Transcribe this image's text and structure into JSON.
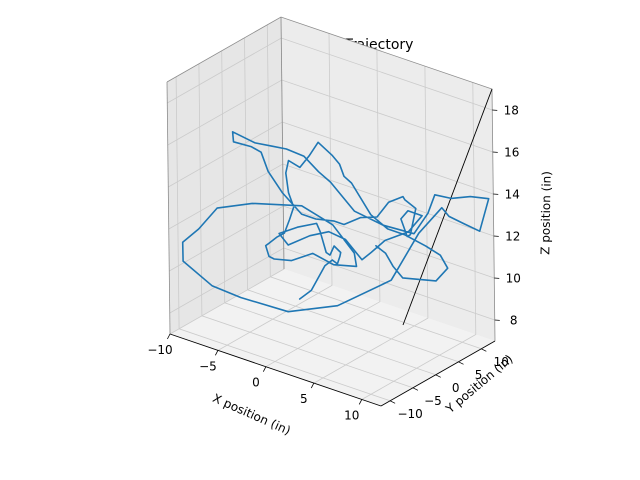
{
  "chart_data": {
    "type": "line",
    "projection": "3d",
    "title": "3D plot of Ball Trajectory",
    "xlabel": "X position (in)",
    "ylabel": "Y position (in)",
    "zlabel": "Z  position (in)",
    "xlim": [
      -10,
      12
    ],
    "ylim": [
      -12,
      13
    ],
    "zlim": [
      7,
      19
    ],
    "xticks": [
      -10,
      -5,
      0,
      5,
      10
    ],
    "yticks": [
      -10,
      -5,
      0,
      5,
      10
    ],
    "zticks": [
      8,
      10,
      12,
      14,
      16,
      18
    ],
    "xtick_labels": [
      "−10",
      "−5",
      "0",
      "5",
      "10"
    ],
    "ytick_labels": [
      "−10",
      "−5",
      "0",
      "5",
      "10"
    ],
    "ztick_labels": [
      "8",
      "10",
      "12",
      "14",
      "16",
      "18"
    ],
    "grid": true,
    "series": [
      {
        "color": "#1f77b4",
        "points": [
          [
            0.5,
            -5.5,
            9.5
          ],
          [
            1.0,
            -4.0,
            9.8
          ],
          [
            1.5,
            -2.0,
            10.8
          ],
          [
            1.8,
            -1.0,
            11.0
          ],
          [
            1.6,
            0.5,
            10.6
          ],
          [
            1.4,
            1.5,
            10.8
          ],
          [
            1.0,
            2.5,
            10.8
          ],
          [
            0.8,
            1.5,
            11.2
          ],
          [
            0.6,
            1.0,
            10.8
          ],
          [
            0.3,
            0.8,
            10.9
          ],
          [
            -0.3,
            0.8,
            11.8
          ],
          [
            -1.0,
            1.5,
            12.0
          ],
          [
            -2.3,
            0.0,
            11.8
          ],
          [
            -3.5,
            -1.5,
            11.5
          ],
          [
            -2.8,
            -1.0,
            11.0
          ],
          [
            -1.0,
            0.0,
            11.6
          ],
          [
            0.5,
            1.0,
            11.9
          ],
          [
            2.0,
            1.5,
            11.7
          ],
          [
            2.5,
            4.0,
            10.5
          ],
          [
            2.5,
            6.0,
            10.6
          ],
          [
            3.0,
            8.0,
            11.0
          ],
          [
            4.5,
            10.0,
            11.4
          ],
          [
            5.0,
            12.0,
            12.0
          ],
          [
            4.0,
            11.0,
            12.2
          ],
          [
            3.5,
            10.5,
            11.8
          ],
          [
            4.0,
            10.8,
            11.0
          ],
          [
            4.0,
            11.5,
            11.0
          ],
          [
            4.5,
            11.7,
            12.3
          ],
          [
            3.5,
            11.4,
            12.6
          ],
          [
            3.5,
            11.0,
            12.8
          ],
          [
            2.0,
            11.0,
            12.3
          ],
          [
            1.0,
            10.5,
            11.5
          ],
          [
            -0.5,
            10.0,
            11.3
          ],
          [
            -1.5,
            8.5,
            11.0
          ],
          [
            -1.8,
            7.0,
            11.3
          ],
          [
            -3.0,
            5.5,
            11.4
          ],
          [
            -4.0,
            4.5,
            11.6
          ],
          [
            -5.5,
            3.5,
            12.5
          ],
          [
            -6.5,
            2.5,
            13.5
          ],
          [
            -7.2,
            2.5,
            14.3
          ],
          [
            -8.0,
            2.0,
            14.5
          ],
          [
            -8.5,
            -0.8,
            15.0
          ],
          [
            -8.0,
            -2.0,
            15.7
          ],
          [
            -6.0,
            -1.3,
            15.4
          ],
          [
            -4.5,
            -0.7,
            15.4
          ],
          [
            -3.5,
            0.3,
            15.3
          ],
          [
            -2.0,
            1.0,
            15.1
          ],
          [
            -0.5,
            1.0,
            14.6
          ],
          [
            0.5,
            1.5,
            14.2
          ],
          [
            2.5,
            2.5,
            13.0
          ],
          [
            5.0,
            3.5,
            12.6
          ],
          [
            7.5,
            5.0,
            12.4
          ],
          [
            8.5,
            6.0,
            13.4
          ],
          [
            9.0,
            6.5,
            14.3
          ],
          [
            10.0,
            8.0,
            14.1
          ],
          [
            10.8,
            10.5,
            14.0
          ],
          [
            12.0,
            12.0,
            13.9
          ],
          [
            11.5,
            11.0,
            12.4
          ],
          [
            10.5,
            9.5,
            12.8
          ],
          [
            9.5,
            8.5,
            13.1
          ],
          [
            9.0,
            8.0,
            13.5
          ],
          [
            8.0,
            5.0,
            12.5
          ],
          [
            6.5,
            2.0,
            10.4
          ],
          [
            3.5,
            -3.5,
            9.4
          ],
          [
            0.0,
            -7.0,
            9.0
          ],
          [
            -4.0,
            -9.0,
            9.3
          ],
          [
            -6.5,
            -10.0,
            9.6
          ],
          [
            -9.5,
            -10.0,
            10.3
          ],
          [
            -10.0,
            -9.0,
            11.0
          ],
          [
            -9.5,
            -6.5,
            11.4
          ],
          [
            -9.0,
            -3.5,
            12.1
          ],
          [
            -7.0,
            0.0,
            12.2
          ],
          [
            -3.5,
            3.5,
            12.2
          ],
          [
            -1.0,
            5.0,
            11.5
          ],
          [
            0.5,
            6.5,
            10.2
          ],
          [
            1.2,
            5.5,
            9.8
          ],
          [
            0.0,
            3.0,
            10.0
          ],
          [
            -1.2,
            1.0,
            10.6
          ],
          [
            -2.5,
            -1.0,
            10.3
          ],
          [
            -3.8,
            -2.0,
            10.3
          ],
          [
            -4.2,
            -2.3,
            10.4
          ],
          [
            -4.2,
            -3.0,
            11.0
          ],
          [
            -3.5,
            -4.0,
            11.3
          ],
          [
            -2.5,
            -4.0,
            11.8
          ],
          [
            -1.5,
            -4.5,
            12.2
          ],
          [
            -0.8,
            -4.8,
            13.0
          ],
          [
            -0.5,
            -4.5,
            13.6
          ],
          [
            -1.5,
            -3.5,
            14.0
          ],
          [
            -2.0,
            -3.0,
            14.8
          ],
          [
            -1.8,
            -2.8,
            15.4
          ],
          [
            -1.0,
            -2.0,
            15.1
          ],
          [
            -0.5,
            -1.0,
            15.6
          ],
          [
            -0.5,
            1.0,
            16.0
          ],
          [
            0.5,
            2.0,
            15.4
          ],
          [
            1.0,
            2.5,
            15.0
          ],
          [
            1.2,
            3.0,
            14.4
          ],
          [
            1.5,
            4.0,
            14.0
          ],
          [
            3.0,
            5.0,
            12.6
          ],
          [
            4.5,
            5.5,
            12.1
          ],
          [
            6.0,
            6.0,
            12.0
          ],
          [
            8.0,
            6.5,
            11.7
          ],
          [
            9.5,
            6.5,
            11.5
          ],
          [
            10.5,
            6.0,
            11.1
          ],
          [
            9.5,
            5.5,
            10.4
          ],
          [
            6.5,
            4.5,
            10.2
          ],
          [
            5.5,
            4.5,
            10.6
          ],
          [
            4.5,
            5.0,
            11.0
          ],
          [
            3.5,
            5.0,
            11.2
          ]
        ]
      }
    ]
  }
}
